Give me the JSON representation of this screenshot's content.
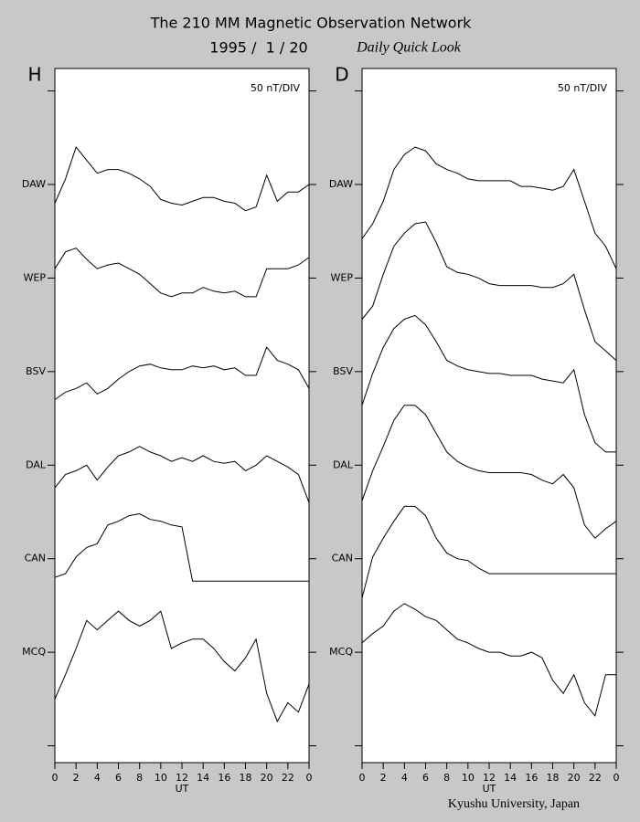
{
  "page": {
    "title": "The 210 MM Magnetic Observation Network",
    "date": "1995 /  1 / 20",
    "subtitle": "Daily Quick Look",
    "credit": "Kyushu University, Japan"
  },
  "chart_data": [
    {
      "type": "line",
      "title": "H",
      "annotation": "50 nT/DIV",
      "xlabel": "UT",
      "x": [
        0,
        1,
        2,
        3,
        4,
        5,
        6,
        7,
        8,
        9,
        10,
        11,
        12,
        13,
        14,
        15,
        16,
        17,
        18,
        19,
        20,
        21,
        22,
        23,
        24
      ],
      "xlim": [
        0,
        24
      ],
      "xticks": [
        0,
        2,
        4,
        6,
        8,
        10,
        12,
        14,
        16,
        18,
        20,
        22,
        {
          "value": 24,
          "label": "0"
        }
      ],
      "ylim": [
        -9,
        362
      ],
      "yticks": [
        {
          "value": 0,
          "label": null
        },
        {
          "value": 50,
          "label": "MCQ"
        },
        {
          "value": 100,
          "label": "CAN"
        },
        {
          "value": 150,
          "label": "DAL"
        },
        {
          "value": 200,
          "label": "BSV"
        },
        {
          "value": 250,
          "label": "WEP"
        },
        {
          "value": 300,
          "label": "DAW"
        },
        {
          "value": 350,
          "label": null
        }
      ],
      "series": [
        {
          "color": "#000000",
          "values": [
            290,
            303,
            320,
            313,
            306,
            308,
            308,
            306,
            303,
            299,
            292,
            290,
            289,
            291,
            293,
            293,
            291,
            290,
            286,
            288,
            305,
            291,
            296,
            296,
            300
          ]
        },
        {
          "color": "#000000",
          "values": [
            255,
            264,
            266,
            260,
            255,
            257,
            258,
            255,
            252,
            247,
            242,
            240,
            242,
            242,
            245,
            243,
            242,
            243,
            240,
            240,
            255,
            255,
            255,
            257,
            261
          ]
        },
        {
          "color": "#000000",
          "values": [
            185,
            189,
            191,
            194,
            188,
            191,
            196,
            200,
            203,
            204,
            202,
            201,
            201,
            203,
            202,
            203,
            201,
            202,
            198,
            198,
            213,
            206,
            204,
            201,
            191
          ]
        },
        {
          "color": "#000000",
          "values": [
            138,
            145,
            147,
            150,
            142,
            149,
            155,
            157,
            160,
            157,
            155,
            152,
            154,
            152,
            155,
            152,
            151,
            152,
            147,
            150,
            155,
            152,
            149,
            145,
            130
          ]
        },
        {
          "color": "#000000",
          "values": [
            90,
            92,
            101,
            106,
            108,
            118,
            120,
            123,
            124,
            121,
            120,
            118,
            117,
            88,
            88,
            88,
            88,
            88,
            88,
            88,
            88,
            88,
            88,
            88,
            88
          ]
        },
        {
          "color": "#000000",
          "values": [
            25,
            38,
            52,
            67,
            62,
            67,
            72,
            67,
            64,
            67,
            72,
            52,
            55,
            57,
            57,
            52,
            45,
            40,
            47,
            57,
            28,
            13,
            23,
            18,
            33
          ]
        }
      ]
    },
    {
      "type": "line",
      "title": "D",
      "annotation": "50 nT/DIV",
      "xlabel": "UT",
      "x": [
        0,
        1,
        2,
        3,
        4,
        5,
        6,
        7,
        8,
        9,
        10,
        11,
        12,
        13,
        14,
        15,
        16,
        17,
        18,
        19,
        20,
        21,
        22,
        23,
        24
      ],
      "xlim": [
        0,
        24
      ],
      "xticks": [
        0,
        2,
        4,
        6,
        8,
        10,
        12,
        14,
        16,
        18,
        20,
        22,
        {
          "value": 24,
          "label": "0"
        }
      ],
      "ylim": [
        -9,
        362
      ],
      "yticks": [
        {
          "value": 0,
          "label": null
        },
        {
          "value": 50,
          "label": "MCQ"
        },
        {
          "value": 100,
          "label": "CAN"
        },
        {
          "value": 150,
          "label": "DAL"
        },
        {
          "value": 200,
          "label": "BSV"
        },
        {
          "value": 250,
          "label": "WEP"
        },
        {
          "value": 300,
          "label": "DAW"
        },
        {
          "value": 350,
          "label": null
        }
      ],
      "series": [
        {
          "color": "#000000",
          "values": [
            271,
            279,
            291,
            308,
            316,
            320,
            318,
            311,
            308,
            306,
            303,
            302,
            302,
            302,
            302,
            299,
            299,
            298,
            297,
            299,
            308,
            291,
            274,
            267,
            255
          ]
        },
        {
          "color": "#000000",
          "values": [
            228,
            235,
            252,
            267,
            274,
            279,
            280,
            269,
            256,
            253,
            252,
            250,
            247,
            246,
            246,
            246,
            246,
            245,
            245,
            247,
            252,
            233,
            216,
            211,
            206
          ]
        },
        {
          "color": "#000000",
          "values": [
            182,
            199,
            213,
            223,
            228,
            230,
            225,
            216,
            206,
            203,
            201,
            200,
            199,
            199,
            198,
            198,
            198,
            196,
            195,
            194,
            201,
            177,
            162,
            157,
            157
          ]
        },
        {
          "color": "#000000",
          "values": [
            131,
            147,
            160,
            174,
            182,
            182,
            177,
            167,
            157,
            152,
            149,
            147,
            146,
            146,
            146,
            146,
            145,
            142,
            140,
            145,
            138,
            118,
            111,
            116,
            120
          ]
        },
        {
          "color": "#000000",
          "values": [
            79,
            101,
            111,
            120,
            128,
            128,
            123,
            111,
            103,
            100,
            99,
            95,
            92,
            92,
            92,
            92,
            92,
            92,
            92,
            92,
            92,
            92,
            92,
            92,
            92
          ]
        },
        {
          "color": "#000000",
          "values": [
            55,
            60,
            64,
            72,
            76,
            73,
            69,
            67,
            62,
            57,
            55,
            52,
            50,
            50,
            48,
            48,
            50,
            47,
            35,
            28,
            38,
            23,
            16,
            38,
            38
          ]
        }
      ]
    }
  ]
}
